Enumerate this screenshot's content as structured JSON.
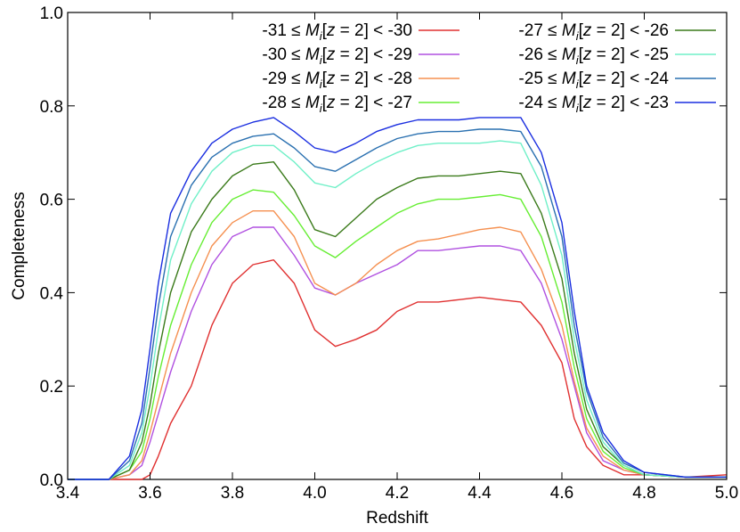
{
  "chart_data": {
    "type": "line",
    "title": "",
    "xlabel": "Redshift",
    "ylabel": "Completeness",
    "xlim": [
      3.4,
      5.0
    ],
    "ylim": [
      0.0,
      1.0
    ],
    "xticks": [
      3.4,
      3.6,
      3.8,
      4.0,
      4.2,
      4.4,
      4.6,
      4.8,
      5.0
    ],
    "xtick_labels": [
      "3.4",
      "3.6",
      "3.8",
      "4.0",
      "4.2",
      "4.4",
      "4.6",
      "4.8",
      "5.0"
    ],
    "yticks": [
      0.0,
      0.2,
      0.4,
      0.6,
      0.8,
      1.0
    ],
    "ytick_labels": [
      "0.0",
      "0.2",
      "0.4",
      "0.6",
      "0.8",
      "1.0"
    ],
    "grid": false,
    "legend_position": "top-right",
    "legend_columns": 2,
    "x": [
      3.4,
      3.5,
      3.55,
      3.58,
      3.6,
      3.62,
      3.65,
      3.7,
      3.75,
      3.8,
      3.85,
      3.9,
      3.95,
      4.0,
      4.05,
      4.1,
      4.15,
      4.2,
      4.25,
      4.3,
      4.35,
      4.4,
      4.45,
      4.5,
      4.55,
      4.6,
      4.63,
      4.66,
      4.7,
      4.75,
      4.8,
      4.9,
      5.0
    ],
    "series": [
      {
        "name": "-31 ≤ M_i[z = 2] < -30",
        "legend_prefix": "-31 ≤ ",
        "legend_suffix": " < -30",
        "color": "#e03030",
        "values": [
          0,
          0,
          0,
          0,
          0.01,
          0.05,
          0.12,
          0.2,
          0.33,
          0.42,
          0.46,
          0.47,
          0.42,
          0.32,
          0.285,
          0.3,
          0.32,
          0.36,
          0.38,
          0.38,
          0.385,
          0.39,
          0.385,
          0.38,
          0.33,
          0.25,
          0.13,
          0.07,
          0.03,
          0.01,
          0.01,
          0.005,
          0.01
        ]
      },
      {
        "name": "-30 ≤ M_i[z = 2] < -29",
        "legend_prefix": "-30 ≤ ",
        "legend_suffix": " < -29",
        "color": "#b050e0",
        "values": [
          0,
          0,
          0.01,
          0.03,
          0.08,
          0.14,
          0.23,
          0.36,
          0.46,
          0.52,
          0.54,
          0.54,
          0.48,
          0.41,
          0.395,
          0.42,
          0.44,
          0.46,
          0.49,
          0.49,
          0.495,
          0.5,
          0.5,
          0.49,
          0.42,
          0.3,
          0.2,
          0.1,
          0.04,
          0.02,
          0.01,
          0.005,
          0.005
        ]
      },
      {
        "name": "-29 ≤ M_i[z = 2] < -28",
        "legend_prefix": "-29 ≤ ",
        "legend_suffix": " < -28",
        "color": "#f59050",
        "values": [
          0,
          0,
          0.01,
          0.04,
          0.1,
          0.17,
          0.27,
          0.4,
          0.5,
          0.55,
          0.575,
          0.575,
          0.52,
          0.42,
          0.395,
          0.42,
          0.46,
          0.49,
          0.51,
          0.515,
          0.525,
          0.535,
          0.54,
          0.53,
          0.45,
          0.33,
          0.21,
          0.11,
          0.05,
          0.02,
          0.01,
          0.005,
          0.005
        ]
      },
      {
        "name": "-28 ≤ M_i[z = 2] < -27",
        "legend_prefix": "-28 ≤ ",
        "legend_suffix": " < -27",
        "color": "#66ee33",
        "values": [
          0,
          0,
          0.02,
          0.06,
          0.13,
          0.22,
          0.33,
          0.46,
          0.55,
          0.6,
          0.62,
          0.615,
          0.565,
          0.5,
          0.475,
          0.51,
          0.54,
          0.57,
          0.59,
          0.6,
          0.6,
          0.605,
          0.61,
          0.6,
          0.52,
          0.38,
          0.24,
          0.13,
          0.06,
          0.025,
          0.01,
          0.005,
          0.005
        ]
      },
      {
        "name": "-27 ≤ M_i[z = 2] < -26",
        "legend_prefix": "-27 ≤ ",
        "legend_suffix": " < -26",
        "color": "#3a7a1a",
        "values": [
          0,
          0,
          0.02,
          0.08,
          0.16,
          0.27,
          0.4,
          0.53,
          0.6,
          0.65,
          0.675,
          0.68,
          0.62,
          0.535,
          0.52,
          0.56,
          0.6,
          0.625,
          0.645,
          0.65,
          0.65,
          0.655,
          0.66,
          0.655,
          0.57,
          0.43,
          0.27,
          0.15,
          0.07,
          0.03,
          0.01,
          0.005,
          0.005
        ]
      },
      {
        "name": "-26 ≤ M_i[z = 2] < -25",
        "legend_prefix": "-26 ≤ ",
        "legend_suffix": " < -25",
        "color": "#70f0c8",
        "values": [
          0,
          0,
          0.03,
          0.1,
          0.2,
          0.32,
          0.47,
          0.59,
          0.66,
          0.7,
          0.715,
          0.715,
          0.68,
          0.635,
          0.625,
          0.655,
          0.68,
          0.7,
          0.715,
          0.72,
          0.72,
          0.72,
          0.725,
          0.72,
          0.63,
          0.48,
          0.3,
          0.17,
          0.08,
          0.03,
          0.01,
          0.005,
          0.005
        ]
      },
      {
        "name": "-25 ≤ M_i[z = 2] < -24",
        "legend_prefix": "-25 ≤ ",
        "legend_suffix": " < -24",
        "color": "#2a70b0",
        "values": [
          0,
          0,
          0.04,
          0.12,
          0.24,
          0.37,
          0.52,
          0.63,
          0.69,
          0.72,
          0.735,
          0.74,
          0.71,
          0.67,
          0.66,
          0.685,
          0.71,
          0.73,
          0.74,
          0.745,
          0.745,
          0.75,
          0.75,
          0.745,
          0.67,
          0.52,
          0.33,
          0.19,
          0.09,
          0.035,
          0.015,
          0.005,
          0.005
        ]
      },
      {
        "name": "-24 ≤ M_i[z = 2] < -23",
        "legend_prefix": "-24 ≤ ",
        "legend_suffix": " < -23",
        "color": "#1a2ee0",
        "values": [
          0,
          0,
          0.05,
          0.15,
          0.28,
          0.42,
          0.57,
          0.66,
          0.72,
          0.75,
          0.765,
          0.775,
          0.745,
          0.71,
          0.7,
          0.72,
          0.745,
          0.76,
          0.77,
          0.77,
          0.77,
          0.775,
          0.775,
          0.775,
          0.7,
          0.55,
          0.36,
          0.2,
          0.1,
          0.04,
          0.015,
          0.005,
          0.005
        ]
      }
    ]
  }
}
